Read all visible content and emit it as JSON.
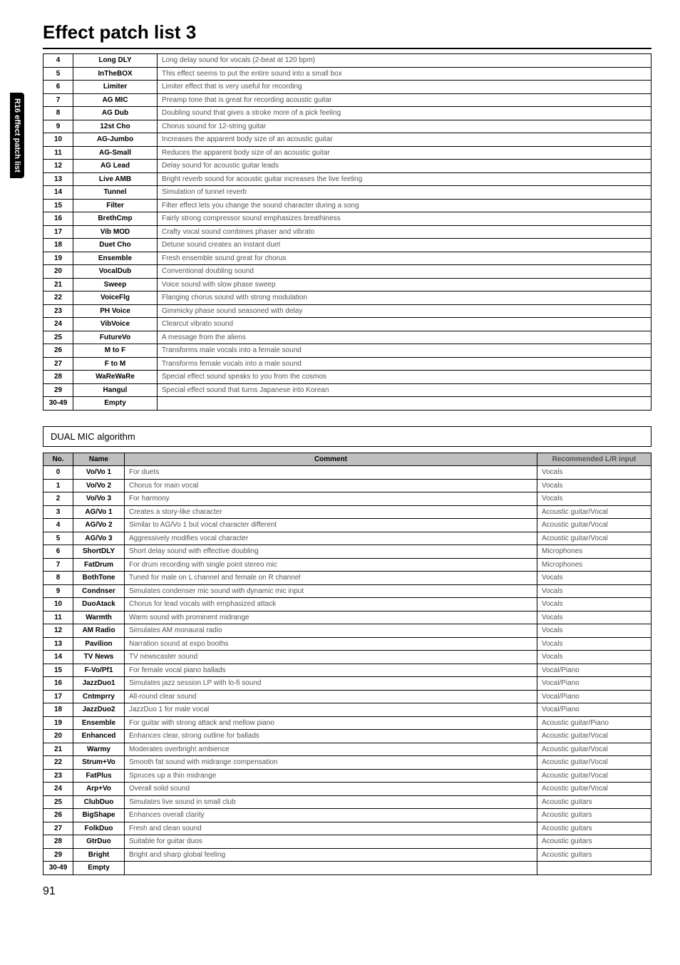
{
  "sideTab": "R16 effect patch list",
  "title": "Effect patch list 3",
  "table1": {
    "rows": [
      {
        "no": "4",
        "name": "Long DLY",
        "comment": "Long delay sound for vocals (2-beat at 120 bpm)"
      },
      {
        "no": "5",
        "name": "InTheBOX",
        "comment": "This effect seems to put the entire sound into a small box"
      },
      {
        "no": "6",
        "name": "Limiter",
        "comment": "Limiter effect that is very useful for recording"
      },
      {
        "no": "7",
        "name": "AG MIC",
        "comment": "Preamp tone that is great for recording acoustic guitar"
      },
      {
        "no": "8",
        "name": "AG Dub",
        "comment": "Doubling sound that gives a stroke more of a pick feeling"
      },
      {
        "no": "9",
        "name": "12st Cho",
        "comment": "Chorus sound for 12-string guitar"
      },
      {
        "no": "10",
        "name": "AG-Jumbo",
        "comment": "Increases the apparent body size of an acoustic guitar"
      },
      {
        "no": "11",
        "name": "AG-Small",
        "comment": "Reduces the apparent body size of an acoustic guitar"
      },
      {
        "no": "12",
        "name": "AG Lead",
        "comment": "Delay sound for acoustic guitar leads"
      },
      {
        "no": "13",
        "name": "Live AMB",
        "comment": "Bright reverb sound for acoustic guitar increases the live feeling"
      },
      {
        "no": "14",
        "name": "Tunnel",
        "comment": "Simulation of tunnel reverb"
      },
      {
        "no": "15",
        "name": "Filter",
        "comment": "Filter effect lets you change the sound character during a song"
      },
      {
        "no": "16",
        "name": "BrethCmp",
        "comment": "Fairly strong compressor sound emphasizes breathiness"
      },
      {
        "no": "17",
        "name": "Vib MOD",
        "comment": "Crafty vocal sound combines phaser and vibrato"
      },
      {
        "no": "18",
        "name": "Duet Cho",
        "comment": "Detune sound creates an instant duet"
      },
      {
        "no": "19",
        "name": "Ensemble",
        "comment": "Fresh ensemble sound great for chorus"
      },
      {
        "no": "20",
        "name": "VocalDub",
        "comment": "Conventional doubling sound"
      },
      {
        "no": "21",
        "name": "Sweep",
        "comment": "Voice sound with slow phase sweep"
      },
      {
        "no": "22",
        "name": "VoiceFlg",
        "comment": "Flanging chorus sound with strong modulation"
      },
      {
        "no": "23",
        "name": "PH Voice",
        "comment": "Gimmicky phase sound seasoned with delay"
      },
      {
        "no": "24",
        "name": "VibVoice",
        "comment": "Clearcut vibrato sound"
      },
      {
        "no": "25",
        "name": "FutureVo",
        "comment": "A message from the aliens"
      },
      {
        "no": "26",
        "name": "M to F",
        "comment": "Transforms male vocals into a female sound"
      },
      {
        "no": "27",
        "name": "F to M",
        "comment": "Transforms female vocals into a male sound"
      },
      {
        "no": "28",
        "name": "WaReWaRe",
        "comment": "Special effect sound speaks to you from the cosmos"
      },
      {
        "no": "29",
        "name": "Hangul",
        "comment": "Special effect sound that turns Japanese into Korean"
      },
      {
        "no": "30-49",
        "name": "Empty",
        "comment": ""
      }
    ]
  },
  "algoTitle": "DUAL MIC algorithm",
  "table2": {
    "headers": {
      "no": "No.",
      "name": "Name",
      "comment": "Comment",
      "rec": "Recommended L/R input"
    },
    "rows": [
      {
        "no": "0",
        "name": "Vo/Vo 1",
        "comment": "For duets",
        "rec": "Vocals"
      },
      {
        "no": "1",
        "name": "Vo/Vo 2",
        "comment": "Chorus for main vocal",
        "rec": "Vocals"
      },
      {
        "no": "2",
        "name": "Vo/Vo 3",
        "comment": "For harmony",
        "rec": "Vocals"
      },
      {
        "no": "3",
        "name": "AG/Vo 1",
        "comment": "Creates a story-like character",
        "rec": "Acoustic guitar/Vocal"
      },
      {
        "no": "4",
        "name": "AG/Vo 2",
        "comment": "Similar to AG/Vo 1 but vocal character different",
        "rec": "Acoustic guitar/Vocal"
      },
      {
        "no": "5",
        "name": "AG/Vo 3",
        "comment": "Aggressively modifies vocal character",
        "rec": "Acoustic guitar/Vocal"
      },
      {
        "no": "6",
        "name": "ShortDLY",
        "comment": "Short delay sound with effective doubling",
        "rec": "Microphones"
      },
      {
        "no": "7",
        "name": "FatDrum",
        "comment": "For drum recording with single point stereo mic",
        "rec": "Microphones"
      },
      {
        "no": "8",
        "name": "BothTone",
        "comment": "Tuned for male on L channel and female on R channel",
        "rec": "Vocals"
      },
      {
        "no": "9",
        "name": "Condnser",
        "comment": "Simulates condenser mic sound with dynamic mic input",
        "rec": "Vocals"
      },
      {
        "no": "10",
        "name": "DuoAtack",
        "comment": "Chorus for lead vocals with emphasized attack",
        "rec": "Vocals"
      },
      {
        "no": "11",
        "name": "Warmth",
        "comment": "Warm sound with prominent midrange",
        "rec": "Vocals"
      },
      {
        "no": "12",
        "name": "AM Radio",
        "comment": "Simulates AM monaural radio",
        "rec": "Vocals"
      },
      {
        "no": "13",
        "name": "Pavilion",
        "comment": "Narration sound at expo booths",
        "rec": "Vocals"
      },
      {
        "no": "14",
        "name": "TV News",
        "comment": "TV newscaster sound",
        "rec": "Vocals"
      },
      {
        "no": "15",
        "name": "F-Vo/Pf1",
        "comment": "For female vocal piano ballads",
        "rec": "Vocal/Piano"
      },
      {
        "no": "16",
        "name": "JazzDuo1",
        "comment": "Simulates jazz session LP with lo-fi sound",
        "rec": "Vocal/Piano"
      },
      {
        "no": "17",
        "name": "Cntmprry",
        "comment": "All-round clear sound",
        "rec": "Vocal/Piano"
      },
      {
        "no": "18",
        "name": "JazzDuo2",
        "comment": "JazzDuo 1 for male vocal",
        "rec": "Vocal/Piano"
      },
      {
        "no": "19",
        "name": "Ensemble",
        "comment": "For guitar with strong attack and mellow piano",
        "rec": "Acoustic guitar/Piano"
      },
      {
        "no": "20",
        "name": "Enhanced",
        "comment": "Enhances clear, strong outline for ballads",
        "rec": "Acoustic guitar/Vocal"
      },
      {
        "no": "21",
        "name": "Warmy",
        "comment": "Moderates overbright ambience",
        "rec": "Acoustic guitar/Vocal"
      },
      {
        "no": "22",
        "name": "Strum+Vo",
        "comment": "Smooth fat sound with midrange compensation",
        "rec": "Acoustic guitar/Vocal"
      },
      {
        "no": "23",
        "name": "FatPlus",
        "comment": "Spruces up a thin midrange",
        "rec": "Acoustic guitar/Vocal"
      },
      {
        "no": "24",
        "name": "Arp+Vo",
        "comment": "Overall solid sound",
        "rec": "Acoustic guitar/Vocal"
      },
      {
        "no": "25",
        "name": "ClubDuo",
        "comment": "Simulates live sound in small club",
        "rec": "Acoustic guitars"
      },
      {
        "no": "26",
        "name": "BigShape",
        "comment": "Enhances overall clarity",
        "rec": "Acoustic guitars"
      },
      {
        "no": "27",
        "name": "FolkDuo",
        "comment": "Fresh and clean sound",
        "rec": "Acoustic guitars"
      },
      {
        "no": "28",
        "name": "GtrDuo",
        "comment": "Suitable for guitar duos",
        "rec": "Acoustic guitars"
      },
      {
        "no": "29",
        "name": "Bright",
        "comment": "Bright and sharp global feeling",
        "rec": "Acoustic guitars"
      },
      {
        "no": "30-49",
        "name": "Empty",
        "comment": "",
        "rec": ""
      }
    ]
  },
  "pageNum": "91"
}
